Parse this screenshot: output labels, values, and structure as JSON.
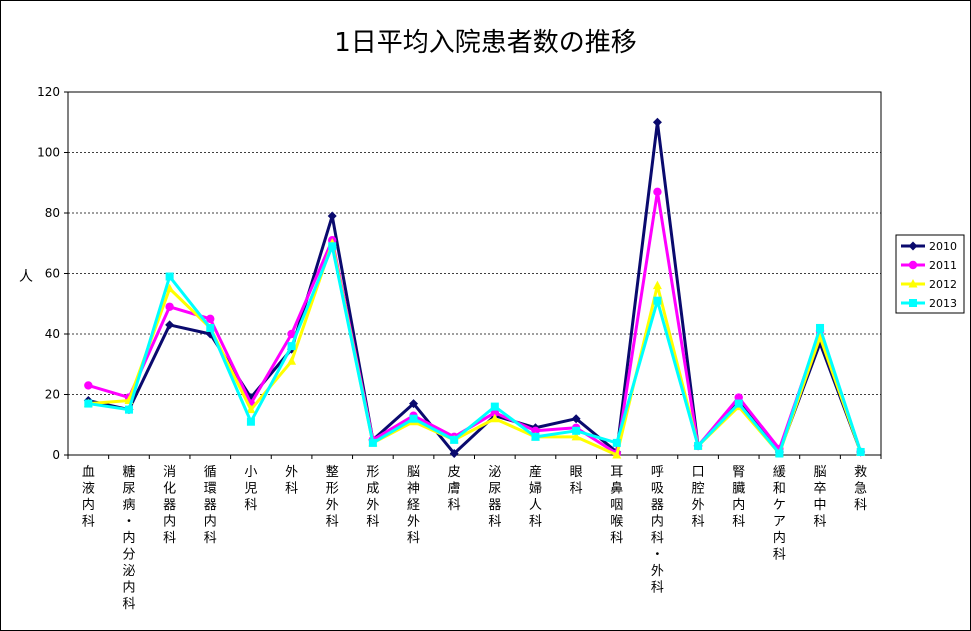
{
  "chart_data": {
    "type": "line",
    "title": "1日平均入院患者数の推移",
    "ylabel": "人",
    "ylim": [
      0,
      120
    ],
    "yticks": [
      0,
      20,
      40,
      60,
      80,
      100,
      120
    ],
    "grid": true,
    "legend_position": "right",
    "categories": [
      "血液内科",
      "糖尿病・内分泌内科",
      "消化器内科",
      "循環器内科",
      "小児科",
      "外科",
      "整形外科",
      "形成外科",
      "脳神経外科",
      "皮膚科",
      "泌尿器科",
      "産婦人科",
      "眼科",
      "耳鼻咽喉科",
      "呼吸器内科・外科",
      "口腔外科",
      "腎臓内科",
      "緩和ケア内科",
      "脳卒中科",
      "救急科"
    ],
    "series": [
      {
        "name": "2010",
        "color": "#0a0a6e",
        "marker": "diamond",
        "values": [
          18,
          15,
          43,
          40,
          19,
          35,
          79,
          5,
          17,
          0.5,
          13,
          9,
          12,
          1,
          110,
          3,
          18,
          1,
          37,
          1
        ]
      },
      {
        "name": "2011",
        "color": "#ff00ff",
        "marker": "circle",
        "values": [
          23,
          19,
          49,
          45,
          17,
          40,
          71,
          5,
          13,
          6,
          14,
          8,
          9,
          0.5,
          87,
          3,
          19,
          2,
          41,
          1
        ]
      },
      {
        "name": "2012",
        "color": "#ffff00",
        "marker": "triangle",
        "values": [
          17,
          18,
          55,
          42,
          15,
          31,
          70,
          4,
          11,
          5,
          12,
          6,
          6,
          0,
          56,
          3,
          16,
          0.5,
          39,
          1
        ]
      },
      {
        "name": "2013",
        "color": "#00ffff",
        "marker": "square",
        "values": [
          17,
          15,
          59,
          42,
          11,
          36,
          69,
          4,
          12,
          5,
          16,
          6,
          8,
          4,
          51,
          3,
          17,
          0.5,
          42,
          1
        ]
      }
    ]
  }
}
